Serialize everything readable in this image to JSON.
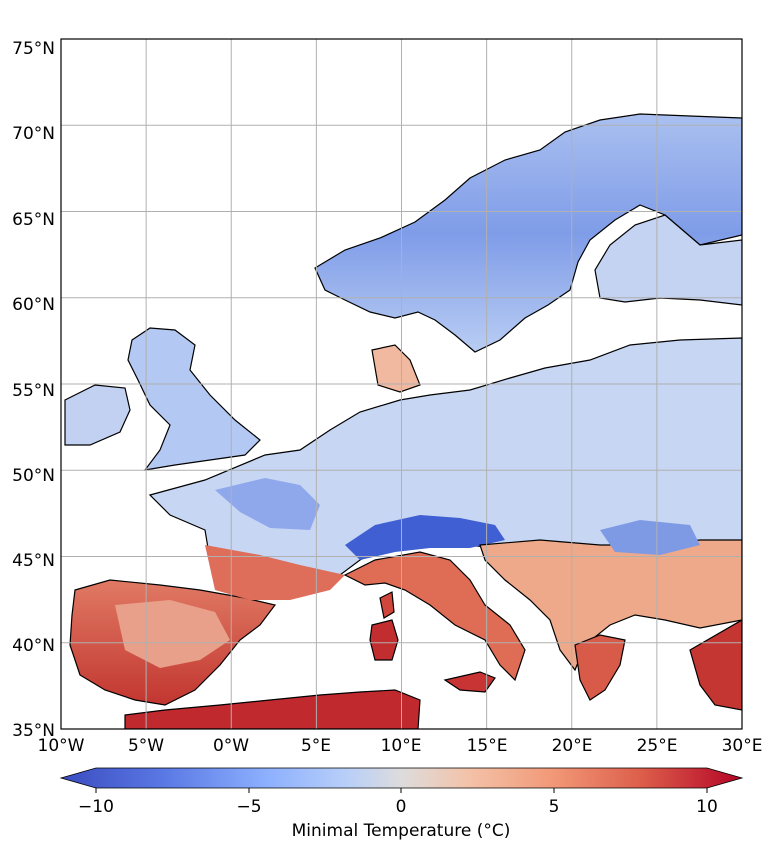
{
  "map": {
    "type": "heatmap",
    "lat_ticks": [
      "75°N",
      "70°N",
      "65°N",
      "60°N",
      "55°N",
      "50°N",
      "45°N",
      "40°N",
      "35°N"
    ],
    "lon_ticks": [
      "10°W",
      "5°W",
      "0°W",
      "5°E",
      "10°E",
      "15°E",
      "20°E",
      "25°E",
      "30°E"
    ],
    "extent": {
      "lon": [
        -10,
        30
      ],
      "lat": [
        35,
        75
      ]
    },
    "grid": true
  },
  "colorbar": {
    "label": "Minimal Temperature (°C)",
    "ticks": [
      "−10",
      "−5",
      "0",
      "5",
      "10"
    ],
    "range": [
      -10,
      10
    ],
    "extend": "both",
    "colormap": "coolwarm",
    "colors": {
      "cold": "#3b4cc0",
      "neutral": "#dddddd",
      "warm": "#b40426"
    }
  }
}
